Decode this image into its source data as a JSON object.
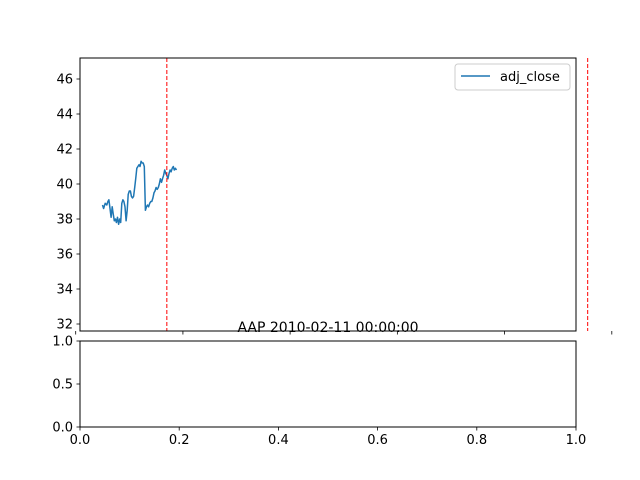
{
  "chart_data": [
    {
      "type": "line",
      "title": "",
      "xlabel": "",
      "ylabel": "",
      "ylim": [
        31.6,
        47.2
      ],
      "yticks": [
        32,
        34,
        36,
        38,
        40,
        42,
        44,
        46
      ],
      "x_tick_labels_visible": false,
      "grid": false,
      "legend": {
        "placement": "upper right",
        "entries": [
          "adj_close"
        ]
      },
      "series": [
        {
          "name": "adj_close",
          "color": "#1f77b4",
          "x": [
            0.05,
            0.052,
            0.055,
            0.058,
            0.06,
            0.062,
            0.064,
            0.066,
            0.068,
            0.07,
            0.072,
            0.074,
            0.076,
            0.078,
            0.08,
            0.082,
            0.084,
            0.086,
            0.088,
            0.09,
            0.092,
            0.094,
            0.096,
            0.098,
            0.1,
            0.102,
            0.104,
            0.106,
            0.108,
            0.11,
            0.112,
            0.114,
            0.116,
            0.118,
            0.12,
            0.122,
            0.124,
            0.126,
            0.128,
            0.13,
            0.132,
            0.134,
            0.136,
            0.138,
            0.14,
            0.142,
            0.144,
            0.146,
            0.148,
            0.15,
            0.152,
            0.154,
            0.156,
            0.158,
            0.16,
            0.162,
            0.164,
            0.166,
            0.168,
            0.17,
            0.172,
            0.174,
            0.176,
            0.178,
            0.18,
            0.182,
            0.184,
            0.186,
            0.188
          ],
          "values": [
            38.8,
            38.6,
            38.9,
            38.8,
            39.0,
            39.1,
            38.6,
            38.1,
            38.7,
            38.3,
            37.9,
            38.0,
            37.8,
            38.1,
            37.7,
            38.0,
            37.8,
            38.9,
            39.1,
            39.0,
            38.7,
            37.9,
            38.5,
            39.4,
            39.6,
            39.6,
            39.3,
            39.2,
            39.3,
            39.8,
            40.3,
            40.9,
            41.0,
            41.1,
            41.0,
            41.3,
            41.2,
            41.2,
            41.0,
            38.5,
            38.7,
            38.8,
            38.7,
            38.9,
            39.0,
            39.0,
            39.2,
            39.5,
            39.6,
            39.8,
            39.7,
            39.8,
            40.0,
            40.3,
            40.1,
            40.3,
            40.5,
            40.8,
            40.6,
            40.5,
            40.3,
            40.6,
            40.8,
            40.7,
            40.9,
            41.0,
            40.8,
            40.9,
            40.8
          ]
        }
      ],
      "vlines": [
        0.17,
        0.955
      ],
      "vline_color": "#ff0000"
    },
    {
      "type": "line",
      "title": "AAP 2010-02-11 00:00:00",
      "xlabel": "",
      "ylabel": "",
      "xlim": [
        0,
        1
      ],
      "ylim": [
        0,
        1
      ],
      "xticks": [
        0.0,
        0.2,
        0.4,
        0.6,
        0.8,
        1.0
      ],
      "yticks": [
        0.0,
        0.5,
        1.0
      ],
      "xtick_labels": [
        "0.0",
        "0.2",
        "0.4",
        "0.6",
        "0.8",
        "1.0"
      ],
      "ytick_labels": [
        "0.0",
        "0.5",
        "1.0"
      ],
      "grid": false,
      "series": []
    }
  ],
  "top_ytick_labels": [
    "32",
    "34",
    "36",
    "38",
    "40",
    "42",
    "44",
    "46"
  ],
  "legend_label": "adj_close",
  "bottom_title": "AAP 2010-02-11 00:00:00"
}
